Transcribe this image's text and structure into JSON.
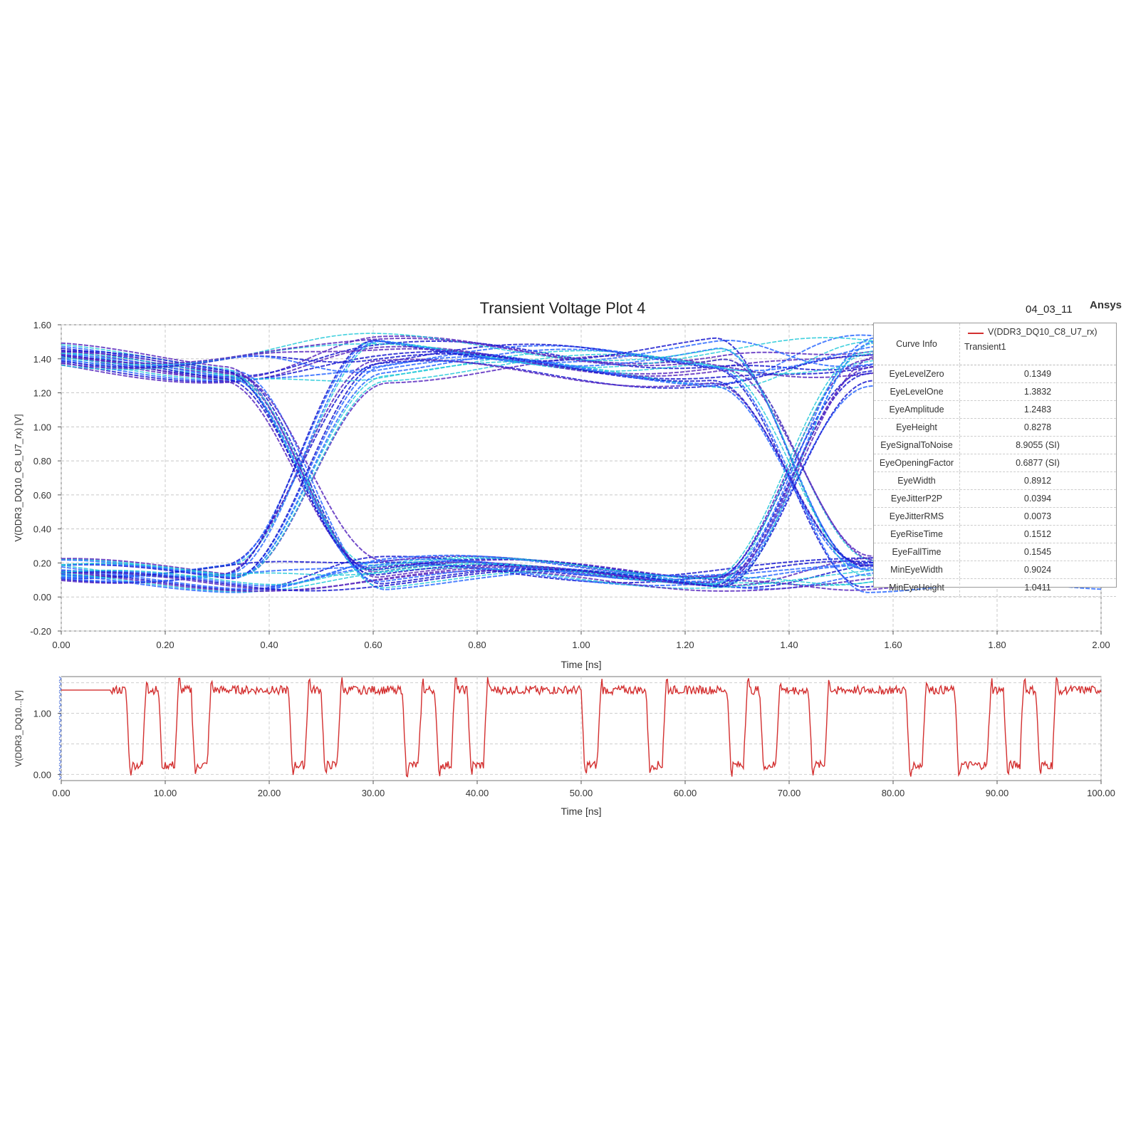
{
  "header": {
    "title": "Transient Voltage Plot 4",
    "date": "04_03_11",
    "brand": "Ansys"
  },
  "legend": {
    "caption": "Curve Info",
    "series_name": "V(DDR3_DQ10_C8_U7_rx)",
    "run_name": "Transient1",
    "line_color": "#d32f2f",
    "metrics": [
      {
        "name": "EyeLevelZero",
        "value": "0.1349"
      },
      {
        "name": "EyeLevelOne",
        "value": "1.3832"
      },
      {
        "name": "EyeAmplitude",
        "value": "1.2483"
      },
      {
        "name": "EyeHeight",
        "value": "0.8278"
      },
      {
        "name": "EyeSignalToNoise",
        "value": "8.9055 (SI)"
      },
      {
        "name": "EyeOpeningFactor",
        "value": "0.6877 (SI)"
      },
      {
        "name": "EyeWidth",
        "value": "0.8912"
      },
      {
        "name": "EyeJitterP2P",
        "value": "0.0394"
      },
      {
        "name": "EyeJitterRMS",
        "value": "0.0073"
      },
      {
        "name": "EyeRiseTime",
        "value": "0.1512"
      },
      {
        "name": "EyeFallTime",
        "value": "0.1545"
      },
      {
        "name": "MinEyeWidth",
        "value": "0.9024"
      },
      {
        "name": "MinEyeHeight",
        "value": "1.0411"
      }
    ]
  },
  "chart_data": [
    {
      "type": "line",
      "subtype": "eye-diagram",
      "xlabel": "Time [ns]",
      "ylabel": "V(DDR3_DQ10_C8_U7_rx) [V]",
      "xlim": [
        0,
        2.0
      ],
      "ylim": [
        -0.2,
        1.6
      ],
      "xticks": [
        "0.00",
        "0.20",
        "0.40",
        "0.60",
        "0.80",
        "1.00",
        "1.20",
        "1.40",
        "1.60",
        "1.80",
        "2.00"
      ],
      "yticks": [
        "-0.20",
        "0.00",
        "0.20",
        "0.40",
        "0.60",
        "0.80",
        "1.00",
        "1.20",
        "1.40",
        "1.60"
      ],
      "grid": true,
      "colors": [
        "#1a1ad0",
        "#2e6bff",
        "#20c8d8",
        "#5a2bbf"
      ],
      "high_level": 1.3832,
      "low_level": 0.1349,
      "crossings": [
        0.47,
        1.405
      ],
      "crossing_voltage": 0.64
    },
    {
      "type": "line",
      "xlabel": "Time [ns]",
      "ylabel": "V(DDR3_DQ10...[V]",
      "xlim": [
        0,
        100.0
      ],
      "ylim": [
        -0.1,
        1.6
      ],
      "xticks": [
        "0.00",
        "10.00",
        "20.00",
        "30.00",
        "40.00",
        "50.00",
        "60.00",
        "70.00",
        "80.00",
        "90.00",
        "100.00"
      ],
      "yticks": [
        "0.00",
        "1.00"
      ],
      "grid": true,
      "color": "#d32f2f",
      "high_level": 1.38,
      "low_level": 0.15,
      "series": [
        {
          "name": "V(DDR3_DQ10_C8_U7_rx)",
          "bits": [
            1,
            0,
            1,
            0,
            1,
            0,
            1,
            1,
            1,
            1,
            1,
            0,
            1,
            0,
            1,
            1,
            1,
            1,
            0,
            1,
            0,
            1,
            0,
            1,
            1,
            1,
            1,
            1,
            1,
            0,
            1,
            1,
            1,
            0,
            1,
            1,
            1,
            1,
            0,
            1,
            0,
            1,
            1,
            0,
            1,
            1,
            1,
            1,
            1,
            0,
            1,
            1,
            0,
            0,
            1,
            0,
            1,
            0,
            1,
            1,
            1,
            0,
            1,
            0,
            1
          ],
          "bit_period_ns": 1.5625,
          "notes": "bit sequence approximated from the waveform"
        }
      ]
    }
  ]
}
